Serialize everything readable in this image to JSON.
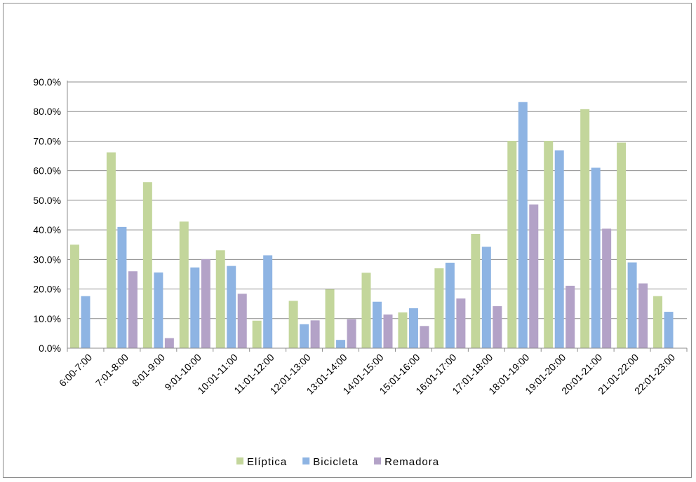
{
  "chart_data": {
    "type": "bar",
    "categories": [
      "6:00-7:00",
      "7:01-8:00",
      "8:01-9:00",
      "9:01-10:00",
      "10:01-11:00",
      "11:01-12:00",
      "12:01-13:00",
      "13:01-14:00",
      "14:01-15:00",
      "15:01-16:00",
      "16:01-17:00",
      "17:01-18:00",
      "18:01-19:00",
      "19:01-20:00",
      "20:01-21:00",
      "21:01-22:00",
      "22:01-23:00"
    ],
    "series": [
      {
        "name": "Elíptica",
        "color": "#c3d69b",
        "values": [
          35.0,
          66.2,
          56.1,
          42.8,
          33.1,
          9.3,
          16.0,
          19.9,
          25.5,
          12.1,
          27.0,
          38.6,
          70.1,
          70.1,
          80.8,
          69.5,
          17.6
        ]
      },
      {
        "name": "Bicicleta",
        "color": "#8eb4e3",
        "values": [
          17.6,
          41.0,
          25.6,
          27.3,
          27.8,
          31.4,
          8.1,
          2.8,
          15.7,
          13.5,
          28.9,
          34.3,
          83.2,
          66.9,
          61.0,
          29.0,
          12.3
        ]
      },
      {
        "name": "Remadora",
        "color": "#b3a2c7",
        "values": [
          0.0,
          26.0,
          3.4,
          30.1,
          18.4,
          0.0,
          9.4,
          9.8,
          11.4,
          7.5,
          16.8,
          14.2,
          48.6,
          21.1,
          40.4,
          21.9,
          0.0
        ]
      }
    ],
    "yticks": [
      "0.0%",
      "10.0%",
      "20.0%",
      "30.0%",
      "40.0%",
      "50.0%",
      "60.0%",
      "70.0%",
      "80.0%",
      "90.0%"
    ],
    "ylim": [
      0,
      90
    ],
    "title": "",
    "xlabel": "",
    "ylabel": "",
    "grid": true,
    "legend_position": "bottom"
  }
}
